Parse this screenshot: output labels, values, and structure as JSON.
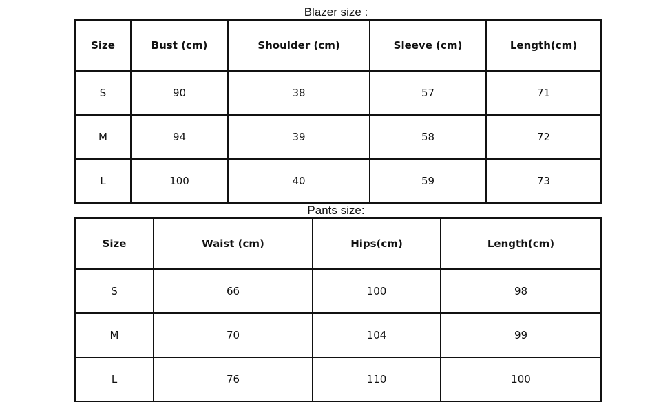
{
  "blazer": {
    "title": "Blazer size :",
    "headers": [
      "Size",
      "Bust (cm)",
      "Shoulder (cm)",
      "Sleeve (cm)",
      "Length(cm)"
    ],
    "rows": [
      [
        "S",
        "90",
        "38",
        "57",
        "71"
      ],
      [
        "M",
        "94",
        "39",
        "58",
        "72"
      ],
      [
        "L",
        "100",
        "40",
        "59",
        "73"
      ]
    ]
  },
  "pants": {
    "title": "Pants size:",
    "headers": [
      "Size",
      "Waist (cm)",
      "Hips(cm)",
      "Length(cm)"
    ],
    "rows": [
      [
        "S",
        "66",
        "100",
        "98"
      ],
      [
        "M",
        "70",
        "104",
        "99"
      ],
      [
        "L",
        "76",
        "110",
        "100"
      ]
    ]
  }
}
